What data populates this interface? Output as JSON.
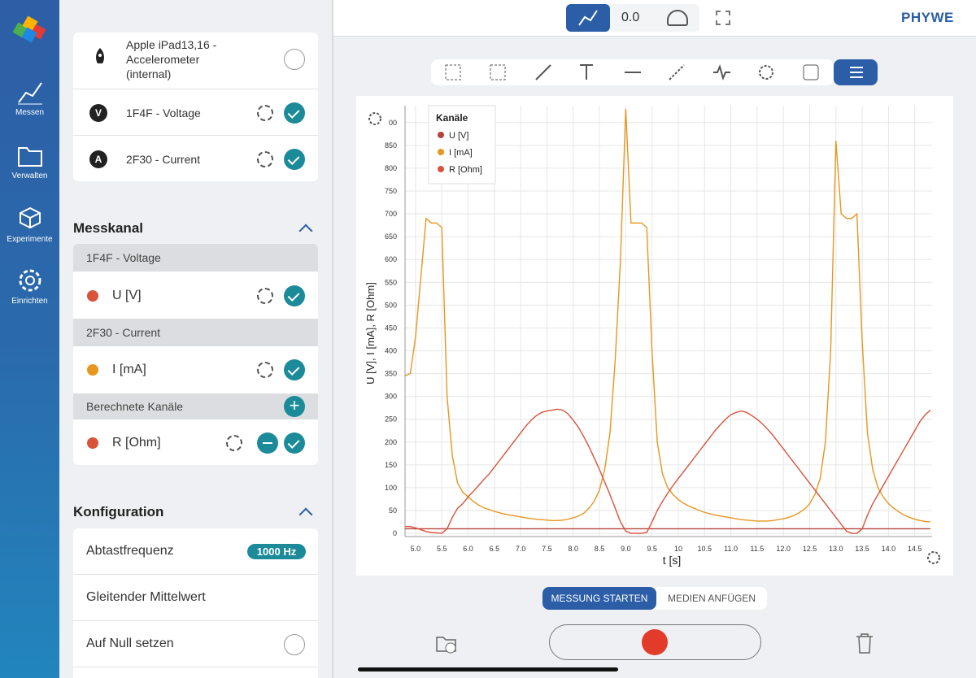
{
  "nav": {
    "items": [
      "Messen",
      "Verwalten",
      "Experimente",
      "Einrichten"
    ]
  },
  "header": {
    "value": "0.0",
    "brand": "PHYWE"
  },
  "sensors": {
    "items": [
      {
        "name": "Apple iPad13,16 - Accelerometer (internal)"
      },
      {
        "icon": "V",
        "name": "1F4F - Voltage"
      },
      {
        "icon": "A",
        "name": "2F30 - Current"
      }
    ]
  },
  "messkanal": {
    "title": "Messkanal",
    "groups": [
      {
        "header": "1F4F - Voltage",
        "channel": "U [V]"
      },
      {
        "header": "2F30 - Current",
        "channel": "I [mA]"
      },
      {
        "header": "Berechnete Kanäle",
        "channel": "R [Ohm]"
      }
    ]
  },
  "konfiguration": {
    "title": "Konfiguration",
    "items": [
      "Abtastfrequenz",
      "Gleitender Mittelwert",
      "Auf Null setzen"
    ],
    "badge": "1000 Hz"
  },
  "buttons": {
    "start": "MESSUNG STARTEN",
    "media": "MEDIEN ANFÜGEN"
  },
  "chart_data": {
    "type": "line",
    "legend_title": "Kanäle",
    "xlabel": "t [s]",
    "ylabel": "U [V], I [mA], R [Ohm]",
    "grid": true,
    "xlim": [
      4.8,
      14.83
    ],
    "ylim": [
      -7,
      937
    ],
    "xticks": [
      {
        "value": 5,
        "label": "5.0"
      },
      5.5,
      {
        "value": 6,
        "label": "6.0"
      },
      6.5,
      {
        "value": 7,
        "label": "7.0"
      },
      7.5,
      {
        "value": 8,
        "label": "8.0"
      },
      8.5,
      {
        "value": 9,
        "label": "9.0"
      },
      9.5,
      10.0,
      10.5,
      {
        "value": 11,
        "label": "11.0"
      },
      11.5,
      {
        "value": 12,
        "label": "12.0"
      },
      12.5,
      {
        "value": 13,
        "label": "13.0"
      },
      13.5,
      {
        "value": 14,
        "label": "14.0"
      },
      14.5
    ],
    "yticks": [
      0,
      50,
      100,
      150,
      200,
      250,
      300,
      350,
      400,
      450,
      500,
      550,
      600,
      650,
      700,
      750,
      800,
      850,
      {
        "value": 900,
        "label": "00"
      }
    ],
    "x": [
      4.8,
      4.9,
      5.0,
      5.1,
      5.2,
      5.3,
      5.4,
      5.5,
      5.6,
      5.7,
      5.8,
      5.9,
      6.0,
      6.1,
      6.2,
      6.3,
      6.4,
      6.5,
      6.6,
      6.7,
      6.8,
      6.9,
      7.0,
      7.1,
      7.2,
      7.3,
      7.4,
      7.5,
      7.6,
      7.7,
      7.8,
      7.9,
      8.0,
      8.1,
      8.2,
      8.3,
      8.4,
      8.5,
      8.6,
      8.7,
      8.8,
      8.9,
      9.0,
      9.1,
      9.2,
      9.3,
      9.4,
      9.5,
      9.6,
      9.7,
      9.8,
      9.9,
      10.0,
      10.1,
      10.2,
      10.3,
      10.4,
      10.5,
      10.6,
      10.7,
      10.8,
      10.9,
      11.0,
      11.1,
      11.2,
      11.3,
      11.4,
      11.5,
      11.6,
      11.7,
      11.8,
      11.9,
      12.0,
      12.1,
      12.2,
      12.3,
      12.4,
      12.5,
      12.6,
      12.7,
      12.8,
      12.9,
      13.0,
      13.1,
      13.2,
      13.3,
      13.4,
      13.5,
      13.6,
      13.7,
      13.8,
      13.9,
      14.0,
      14.1,
      14.2,
      14.3,
      14.4,
      14.5,
      14.6,
      14.7,
      14.8
    ],
    "series": [
      {
        "name": "U [V]",
        "color": "#b5433a",
        "values": [
          10,
          10,
          10,
          10,
          10,
          10,
          10,
          10,
          10,
          10,
          10,
          10,
          10,
          10,
          10,
          10,
          10,
          10,
          10,
          10,
          10,
          10,
          10,
          10,
          10,
          10,
          10,
          10,
          10,
          10,
          10,
          10,
          10,
          10,
          10,
          10,
          10,
          10,
          10,
          10,
          10,
          10,
          10,
          10,
          10,
          10,
          10,
          10,
          10,
          10,
          10,
          10,
          10,
          10,
          10,
          10,
          10,
          10,
          10,
          10,
          10,
          10,
          10,
          10,
          10,
          10,
          10,
          10,
          10,
          10,
          10,
          10,
          10,
          10,
          10,
          10,
          10,
          10,
          10,
          10,
          10,
          10,
          10,
          10,
          10,
          10,
          10,
          10,
          10,
          10,
          10,
          10,
          10,
          10,
          10,
          10,
          10,
          10,
          10,
          10,
          10
        ]
      },
      {
        "name": "I [mA]",
        "color": "#e8961e",
        "values": [
          345,
          350,
          430,
          560,
          690,
          680,
          680,
          670,
          300,
          170,
          110,
          90,
          80,
          70,
          62,
          56,
          52,
          48,
          45,
          42,
          40,
          38,
          36,
          34,
          32,
          31,
          30,
          29,
          28,
          28,
          29,
          31,
          34,
          38,
          44,
          55,
          70,
          95,
          140,
          220,
          380,
          600,
          930,
          680,
          680,
          680,
          670,
          400,
          200,
          130,
          100,
          85,
          74,
          66,
          60,
          55,
          50,
          46,
          43,
          40,
          38,
          36,
          34,
          32,
          30,
          29,
          28,
          27,
          27,
          27,
          28,
          30,
          32,
          35,
          39,
          45,
          53,
          65,
          85,
          120,
          200,
          400,
          860,
          700,
          690,
          690,
          700,
          420,
          220,
          140,
          100,
          80,
          65,
          55,
          47,
          40,
          35,
          31,
          28,
          26,
          25
        ]
      },
      {
        "name": "R [Ohm]",
        "color": "#d9533a",
        "values": [
          15,
          15,
          12,
          8,
          4,
          2,
          1,
          0,
          10,
          35,
          55,
          65,
          80,
          92,
          105,
          118,
          130,
          145,
          160,
          175,
          190,
          205,
          220,
          235,
          248,
          258,
          265,
          268,
          270,
          272,
          270,
          262,
          248,
          232,
          212,
          190,
          165,
          140,
          112,
          85,
          55,
          25,
          5,
          0,
          0,
          0,
          2,
          25,
          50,
          70,
          88,
          105,
          120,
          135,
          150,
          165,
          180,
          195,
          210,
          225,
          238,
          250,
          260,
          265,
          268,
          265,
          258,
          250,
          240,
          228,
          215,
          200,
          185,
          170,
          155,
          140,
          125,
          110,
          95,
          80,
          65,
          50,
          35,
          20,
          5,
          0,
          0,
          10,
          40,
          65,
          85,
          105,
          125,
          145,
          165,
          185,
          205,
          225,
          245,
          260,
          270
        ]
      }
    ]
  }
}
